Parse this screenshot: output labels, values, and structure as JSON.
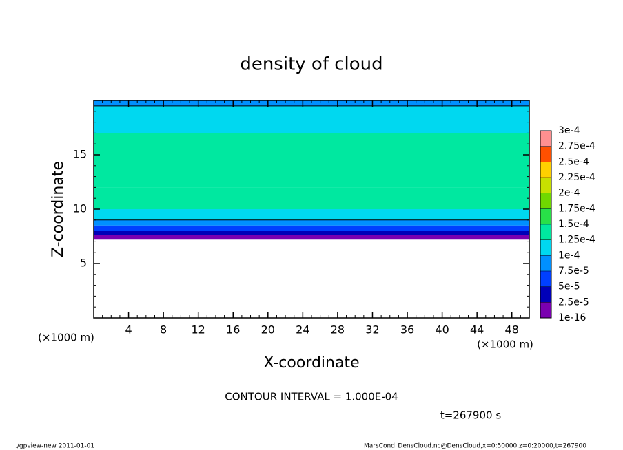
{
  "chart_data": {
    "type": "contour",
    "title": "density of cloud",
    "xlabel": "X-coordinate",
    "ylabel": "Z-coordinate",
    "x_unit": "(×1000 m)",
    "y_unit": "(×1000 m)",
    "xlim": [
      0,
      50
    ],
    "ylim": [
      0,
      20
    ],
    "xticks": [
      4,
      8,
      12,
      16,
      20,
      24,
      28,
      32,
      36,
      40,
      44,
      48
    ],
    "yticks": [
      5,
      10,
      15
    ],
    "xminor": 1,
    "yminor": 1,
    "field": {
      "z_edges": [
        7.2,
        7.6,
        8.0,
        8.5,
        9.0,
        10.0,
        12.0,
        17.0,
        19.5,
        20.0
      ],
      "values": [
        1e-05,
        3e-05,
        6e-05,
        8.5e-05,
        0.00011,
        0.00014,
        0.00013,
        0.00011,
        9e-05
      ]
    },
    "contour_level": 0.0001,
    "levels": [
      {
        "value": 1e-16,
        "label": "1e-16"
      },
      {
        "value": 2.5e-05,
        "label": "2.5e-5"
      },
      {
        "value": 5e-05,
        "label": "5e-5"
      },
      {
        "value": 7.5e-05,
        "label": "7.5e-5"
      },
      {
        "value": 0.0001,
        "label": "1e-4"
      },
      {
        "value": 0.000125,
        "label": "1.25e-4"
      },
      {
        "value": 0.00015,
        "label": "1.5e-4"
      },
      {
        "value": 0.000175,
        "label": "1.75e-4"
      },
      {
        "value": 0.0002,
        "label": "2e-4"
      },
      {
        "value": 0.000225,
        "label": "2.25e-4"
      },
      {
        "value": 0.00025,
        "label": "2.5e-4"
      },
      {
        "value": 0.000275,
        "label": "2.75e-4"
      },
      {
        "value": 0.0003,
        "label": "3e-4"
      }
    ],
    "colors": [
      "#7a00b0",
      "#0000b8",
      "#0040ff",
      "#0090ff",
      "#00d8f0",
      "#00e8a0",
      "#28e048",
      "#70d800",
      "#c8e000",
      "#ffd000",
      "#ff5000",
      "#ff9090"
    ],
    "contour_note": "CONTOUR INTERVAL = 1.000E-04",
    "time_label": "t=267900 s"
  },
  "footer": {
    "left": "./gpview-new   2011-01-01",
    "right": "MarsCond_DensCloud.nc@DensCloud,x=0:50000,z=0:20000,t=267900"
  }
}
